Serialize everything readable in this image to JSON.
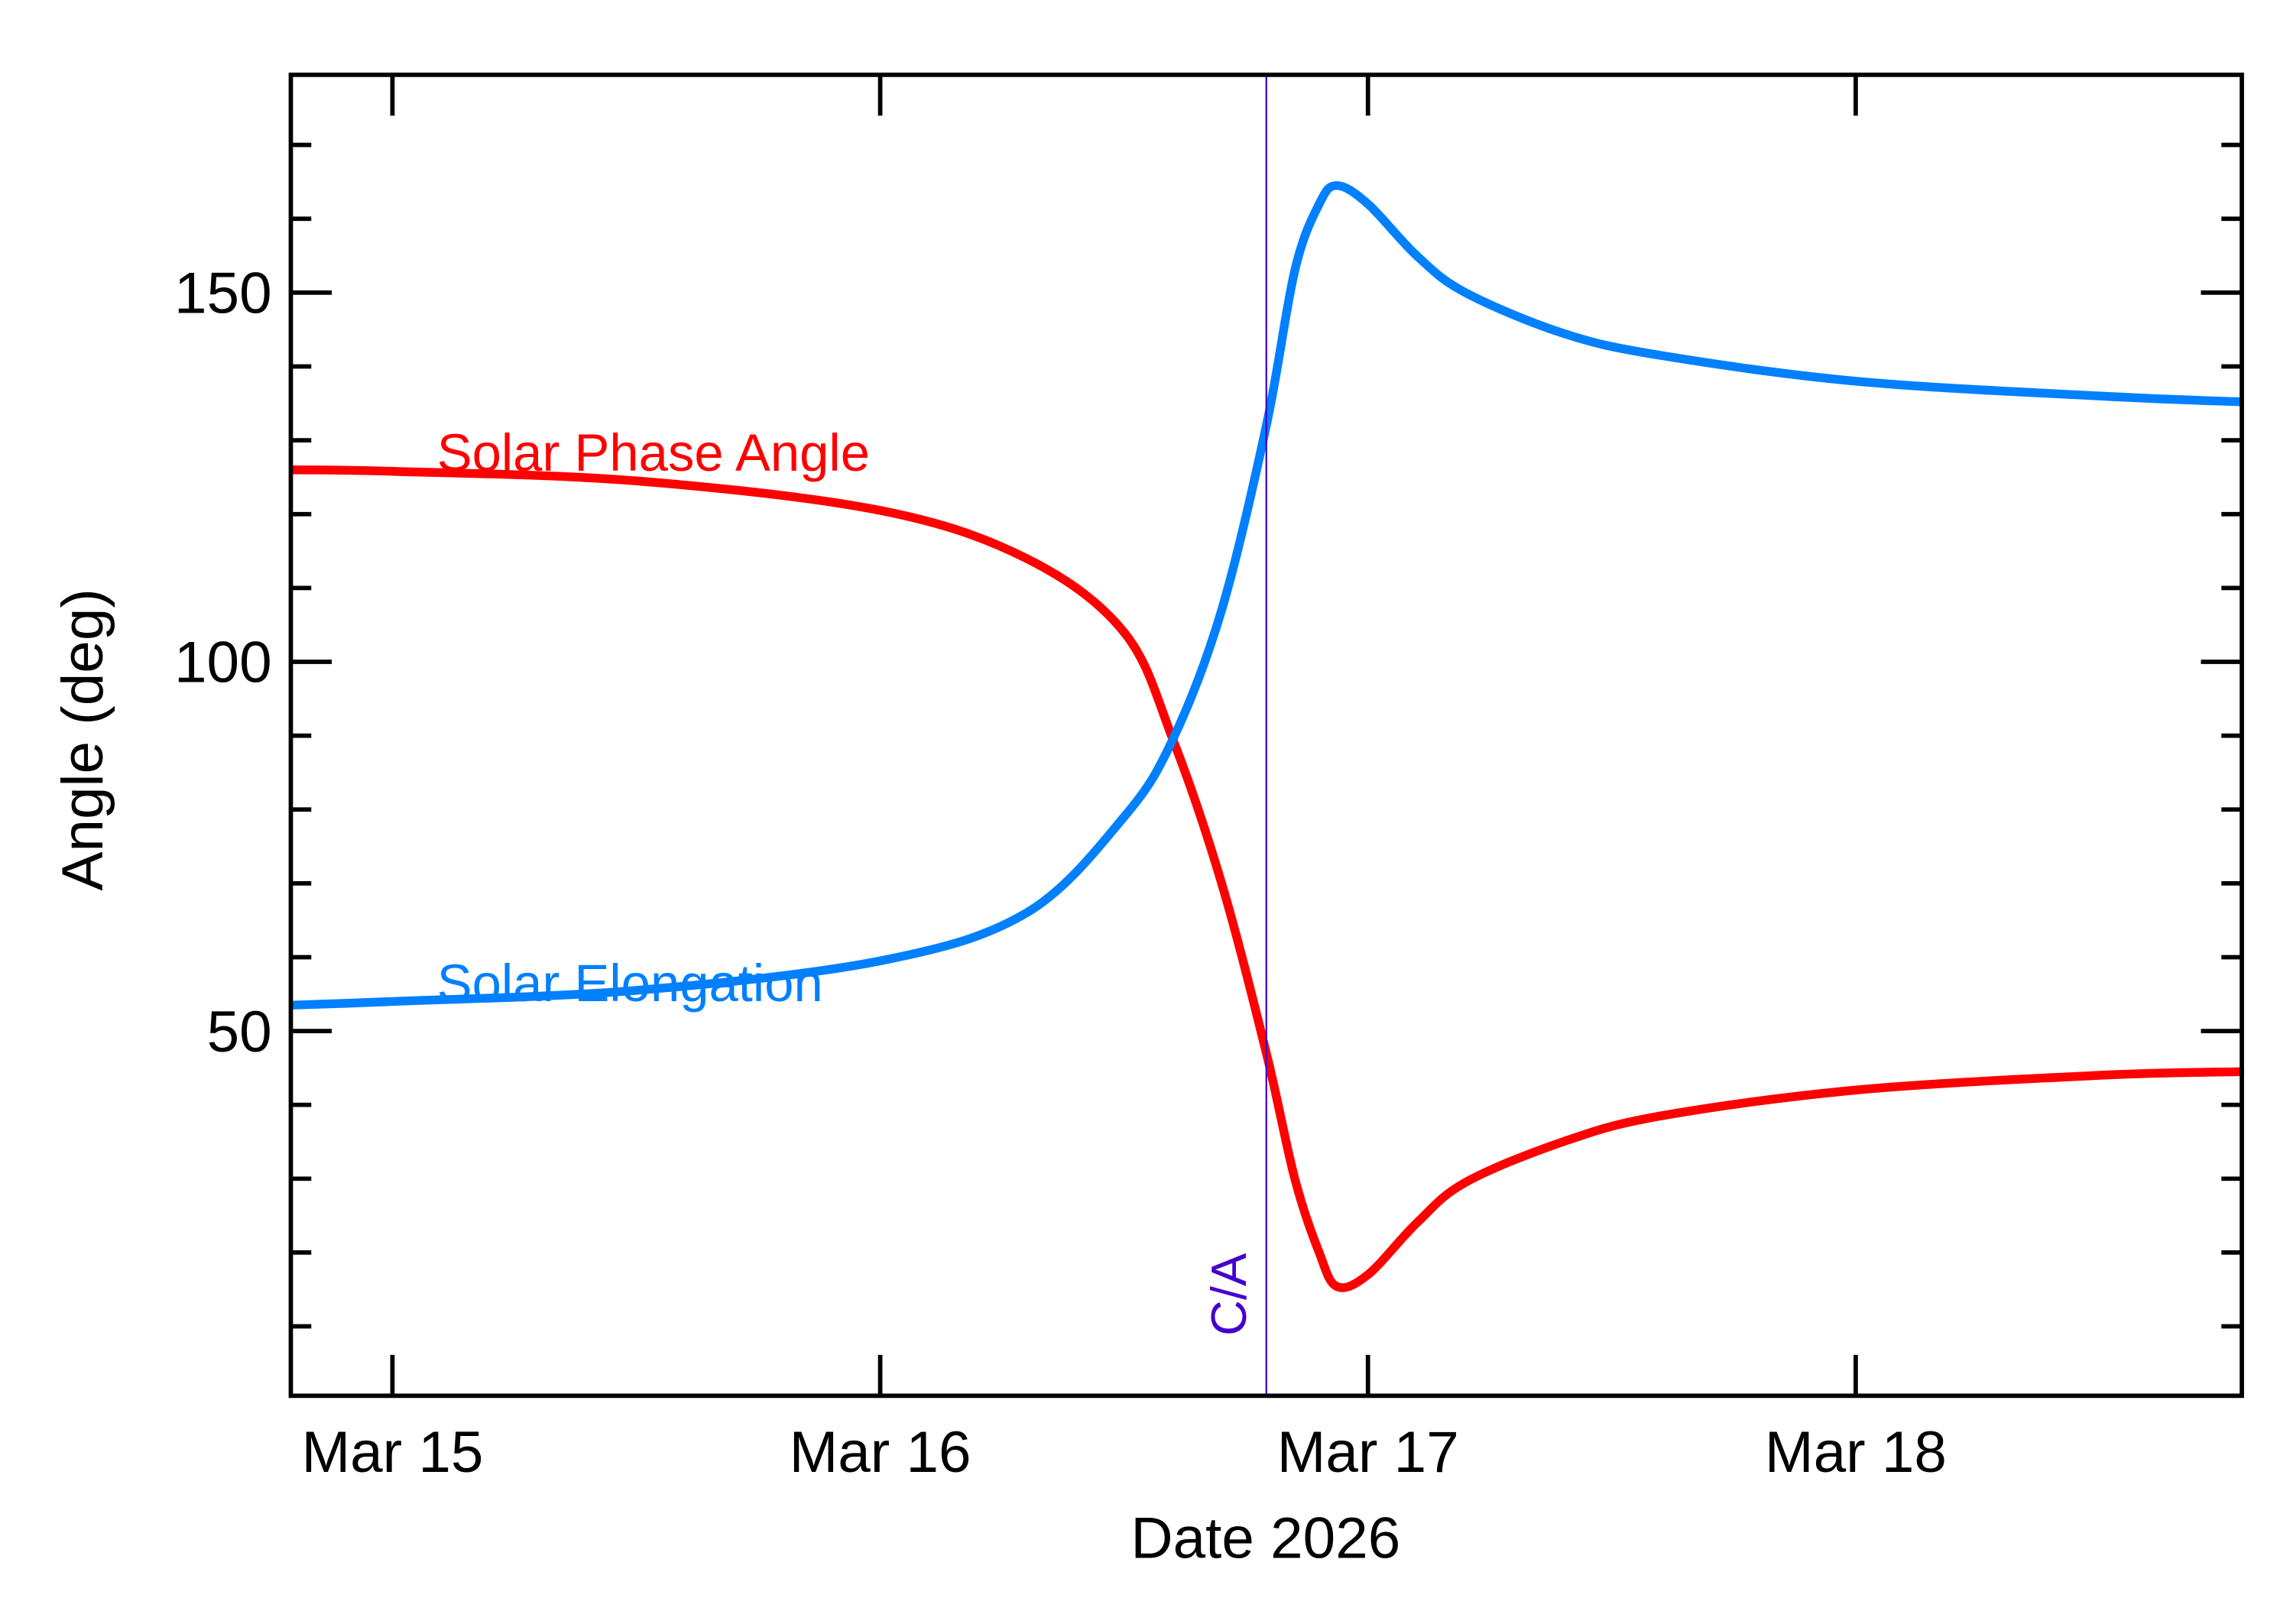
{
  "chart_data": {
    "type": "line",
    "title": "",
    "xlabel": "Date 2026",
    "ylabel": "Angle (deg)",
    "xlim": [
      "2026-03-14T19:00",
      "2026-03-18T19:00"
    ],
    "ylim": [
      0.6,
      179.5
    ],
    "x_ticks": [
      {
        "date": "2026-03-15T00:00",
        "label": "Mar 15"
      },
      {
        "date": "2026-03-16T00:00",
        "label": "Mar 16"
      },
      {
        "date": "2026-03-17T00:00",
        "label": "Mar 17"
      },
      {
        "date": "2026-03-18T00:00",
        "label": "Mar 18"
      }
    ],
    "y_ticks": [
      50,
      100,
      150
    ],
    "y_tick_labels": [
      "50",
      "100",
      "150"
    ],
    "y_minor_step": 10,
    "x_minor_step_days": 1,
    "grid": false,
    "annotation": {
      "label": "C/A",
      "date": "2026-03-16T19:00",
      "color": "#4400cc"
    },
    "series": [
      {
        "name": "Solar Phase Angle",
        "color": "#ff0000",
        "x": [
          "2026-03-14T19:00",
          "2026-03-15T00:00",
          "2026-03-15T12:00",
          "2026-03-16T00:00",
          "2026-03-16T07:12",
          "2026-03-16T12:00",
          "2026-03-16T14:24",
          "2026-03-16T16:48",
          "2026-03-16T19:00",
          "2026-03-16T20:24",
          "2026-03-16T21:36",
          "2026-03-16T22:28",
          "2026-03-17T00:00",
          "2026-03-17T02:24",
          "2026-03-17T04:48",
          "2026-03-17T09:36",
          "2026-03-17T14:24",
          "2026-03-18T00:00",
          "2026-03-18T12:00",
          "2026-03-18T19:00"
        ],
        "y": [
          126,
          125.8,
          124.5,
          120.5,
          114,
          104,
          89.5,
          70,
          47,
          30,
          20,
          15.4,
          17,
          24,
          29.5,
          35,
          38.5,
          42,
          44,
          44.5
        ]
      },
      {
        "name": "Solar Elongation",
        "color": "#0080ff",
        "x": [
          "2026-03-14T19:00",
          "2026-03-15T00:00",
          "2026-03-15T12:00",
          "2026-03-16T00:00",
          "2026-03-16T07:12",
          "2026-03-16T12:00",
          "2026-03-16T14:24",
          "2026-03-16T16:48",
          "2026-03-16T19:00",
          "2026-03-16T20:24",
          "2026-03-16T21:36",
          "2026-03-16T22:28",
          "2026-03-17T00:00",
          "2026-03-17T02:24",
          "2026-03-17T04:48",
          "2026-03-17T09:36",
          "2026-03-17T14:24",
          "2026-03-18T00:00",
          "2026-03-18T12:00",
          "2026-03-18T19:00"
        ],
        "y": [
          53.5,
          54,
          55.5,
          59.5,
          66,
          79,
          89.5,
          107,
          132,
          153,
          162,
          164.5,
          162,
          155,
          150,
          144.5,
          141.5,
          138,
          136,
          135.2
        ]
      }
    ]
  }
}
